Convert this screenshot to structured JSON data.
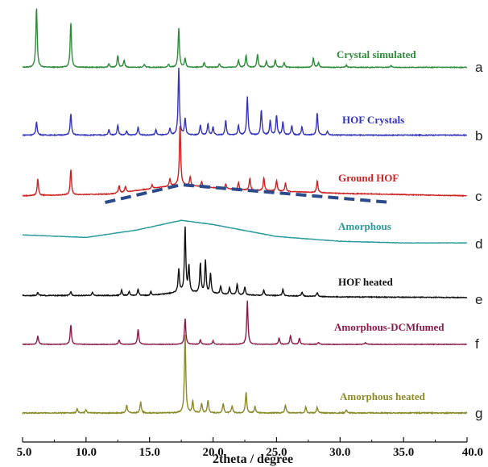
{
  "chart_data": {
    "type": "line",
    "xlabel": "2theta / degree",
    "ylabel": "",
    "xlim": [
      5.0,
      40.0
    ],
    "x_ticks": [
      "5.0",
      "10.0",
      "15.0",
      "20.0",
      "25.0",
      "30.0",
      "35.0",
      "40.0"
    ],
    "x_tick_values": [
      5,
      10,
      15,
      20,
      25,
      30,
      35,
      40
    ],
    "grid": false,
    "legend": "none",
    "series": [
      {
        "letter": "a",
        "name": "Crystal simulated",
        "color": "#2e8b3a",
        "baseline": 0.02,
        "background": [],
        "peaks": [
          [
            6.1,
            1.0
          ],
          [
            8.8,
            0.75
          ],
          [
            11.8,
            0.06
          ],
          [
            12.5,
            0.2
          ],
          [
            13.0,
            0.12
          ],
          [
            14.6,
            0.05
          ],
          [
            16.5,
            0.05
          ],
          [
            17.3,
            0.65
          ],
          [
            17.8,
            0.15
          ],
          [
            19.3,
            0.08
          ],
          [
            20.5,
            0.06
          ],
          [
            22.0,
            0.12
          ],
          [
            22.6,
            0.2
          ],
          [
            23.5,
            0.22
          ],
          [
            24.2,
            0.1
          ],
          [
            24.9,
            0.12
          ],
          [
            25.6,
            0.08
          ],
          [
            27.9,
            0.15
          ],
          [
            28.3,
            0.08
          ],
          [
            30.5,
            0.04
          ],
          [
            34.0,
            0.03
          ]
        ]
      },
      {
        "letter": "b",
        "name": "HOF Crystals",
        "color": "#3333bb",
        "baseline": 0.03,
        "background": [],
        "peaks": [
          [
            6.1,
            0.2
          ],
          [
            8.8,
            0.32
          ],
          [
            11.8,
            0.08
          ],
          [
            12.5,
            0.15
          ],
          [
            13.2,
            0.06
          ],
          [
            14.1,
            0.12
          ],
          [
            15.5,
            0.08
          ],
          [
            16.6,
            0.1
          ],
          [
            17.3,
            1.0
          ],
          [
            17.8,
            0.25
          ],
          [
            19.0,
            0.15
          ],
          [
            19.6,
            0.17
          ],
          [
            20.0,
            0.12
          ],
          [
            21.0,
            0.22
          ],
          [
            22.0,
            0.15
          ],
          [
            22.7,
            0.58
          ],
          [
            23.8,
            0.38
          ],
          [
            24.5,
            0.22
          ],
          [
            25.0,
            0.3
          ],
          [
            25.5,
            0.2
          ],
          [
            26.2,
            0.14
          ],
          [
            27.0,
            0.12
          ],
          [
            28.2,
            0.33
          ],
          [
            29.0,
            0.06
          ]
        ]
      },
      {
        "letter": "c",
        "name": "Ground HOF",
        "color": "#cc2222",
        "baseline": 0.03,
        "background": [
          [
            5,
            0.0
          ],
          [
            12,
            0.03
          ],
          [
            17.3,
            0.18
          ],
          [
            22,
            0.1
          ],
          [
            30,
            0.04
          ],
          [
            40,
            0.0
          ]
        ],
        "peaks": [
          [
            6.2,
            0.28
          ],
          [
            8.8,
            0.42
          ],
          [
            12.6,
            0.12
          ],
          [
            13.1,
            0.1
          ],
          [
            15.2,
            0.06
          ],
          [
            16.6,
            0.12
          ],
          [
            17.4,
            1.0
          ],
          [
            18.2,
            0.15
          ],
          [
            19.1,
            0.08
          ],
          [
            21.0,
            0.08
          ],
          [
            22.0,
            0.12
          ],
          [
            22.9,
            0.2
          ],
          [
            24.0,
            0.22
          ],
          [
            25.0,
            0.18
          ],
          [
            25.7,
            0.14
          ],
          [
            28.2,
            0.2
          ]
        ]
      },
      {
        "letter": "d",
        "name": "Amorphous",
        "color": "#2a9a9a",
        "baseline": 0.02,
        "background": [
          [
            5,
            0.3
          ],
          [
            10,
            0.22
          ],
          [
            14,
            0.45
          ],
          [
            17.5,
            0.75
          ],
          [
            20,
            0.62
          ],
          [
            25,
            0.25
          ],
          [
            30,
            0.1
          ],
          [
            35,
            0.05
          ],
          [
            40,
            0.05
          ]
        ],
        "peaks": []
      },
      {
        "letter": "e",
        "name": "HOF heated",
        "color": "#111111",
        "baseline": 0.03,
        "background": [
          [
            5,
            0.05
          ],
          [
            15,
            0.05
          ],
          [
            17.5,
            0.1
          ],
          [
            22,
            0.06
          ],
          [
            30,
            0.03
          ],
          [
            40,
            0.02
          ]
        ],
        "peaks": [
          [
            6.2,
            0.05
          ],
          [
            8.8,
            0.06
          ],
          [
            10.5,
            0.05
          ],
          [
            12.8,
            0.08
          ],
          [
            13.4,
            0.06
          ],
          [
            14.1,
            0.1
          ],
          [
            15.1,
            0.06
          ],
          [
            17.3,
            0.35
          ],
          [
            17.8,
            1.0
          ],
          [
            18.1,
            0.4
          ],
          [
            19.0,
            0.45
          ],
          [
            19.4,
            0.5
          ],
          [
            19.8,
            0.3
          ],
          [
            20.6,
            0.12
          ],
          [
            21.3,
            0.1
          ],
          [
            21.9,
            0.16
          ],
          [
            22.5,
            0.12
          ],
          [
            24.0,
            0.08
          ],
          [
            25.5,
            0.1
          ],
          [
            27.0,
            0.06
          ],
          [
            28.2,
            0.06
          ]
        ]
      },
      {
        "letter": "f",
        "name": "Amorphous-DCMfumed",
        "color": "#8b1a4a",
        "baseline": 0.02,
        "background": [],
        "peaks": [
          [
            6.2,
            0.2
          ],
          [
            8.8,
            0.45
          ],
          [
            12.6,
            0.1
          ],
          [
            14.1,
            0.35
          ],
          [
            17.8,
            0.6
          ],
          [
            19.0,
            0.1
          ],
          [
            20.0,
            0.08
          ],
          [
            22.7,
            1.0
          ],
          [
            25.2,
            0.15
          ],
          [
            26.1,
            0.2
          ],
          [
            26.8,
            0.14
          ],
          [
            28.3,
            0.05
          ],
          [
            32.0,
            0.04
          ]
        ]
      },
      {
        "letter": "g",
        "name": "Amorphous heated",
        "color": "#8a8a2a",
        "baseline": 0.02,
        "background": [],
        "peaks": [
          [
            9.3,
            0.05
          ],
          [
            10.0,
            0.04
          ],
          [
            13.2,
            0.1
          ],
          [
            14.3,
            0.14
          ],
          [
            17.8,
            1.0
          ],
          [
            18.4,
            0.14
          ],
          [
            19.1,
            0.12
          ],
          [
            19.6,
            0.16
          ],
          [
            20.8,
            0.12
          ],
          [
            21.5,
            0.09
          ],
          [
            22.6,
            0.26
          ],
          [
            23.3,
            0.08
          ],
          [
            25.7,
            0.1
          ],
          [
            27.3,
            0.08
          ],
          [
            28.2,
            0.07
          ],
          [
            30.5,
            0.04
          ]
        ]
      }
    ]
  }
}
